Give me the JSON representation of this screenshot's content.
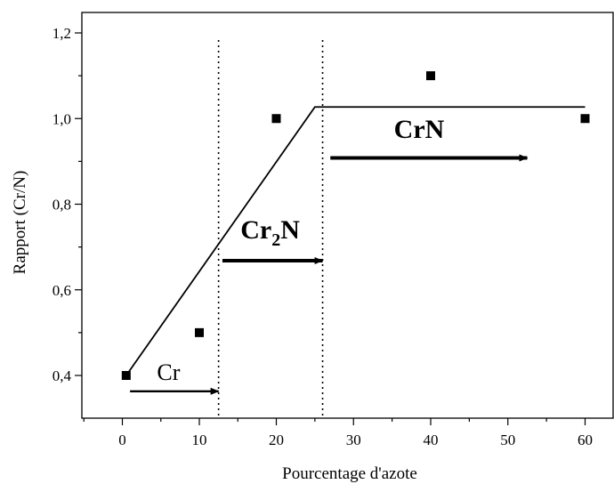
{
  "chart_data": {
    "type": "scatter",
    "xlabel": "Pourcentage d'azote",
    "ylabel": "Rapport (Cr/N)",
    "x_display_ticks": [
      "0",
      "10",
      "20",
      "30",
      "40",
      "50",
      "60"
    ],
    "y_display_ticks": [
      "0,4",
      "0,6",
      "0,8",
      "1,0",
      "1,2"
    ],
    "xlim_display": [
      -5,
      65
    ],
    "ylim": [
      0.3,
      1.45
    ],
    "grid": false,
    "points": [
      {
        "x": 0.5,
        "y": 0.4
      },
      {
        "x": 10,
        "y": 0.5
      },
      {
        "x": 20,
        "y": 1.0
      },
      {
        "x": 40,
        "y": 1.1
      },
      {
        "x": 60,
        "y": 1.0
      }
    ],
    "fit_line": [
      {
        "x": 0.5,
        "y": 0.4
      },
      {
        "x": 25,
        "y": 1.027
      },
      {
        "x": 60,
        "y": 1.027
      }
    ],
    "boundaries_x": [
      12.5,
      26
    ],
    "regions": [
      {
        "label": "Cr",
        "subscript": "",
        "suffix": "",
        "bold": false,
        "arrow_x": [
          1,
          12.5
        ],
        "arrow_y": 0.363,
        "label_x": 6,
        "label_y": 0.39
      },
      {
        "label": "Cr",
        "subscript": "2",
        "suffix": "N",
        "bold": true,
        "arrow_x": [
          13,
          26
        ],
        "arrow_y": 0.668,
        "label_x": 19.2,
        "label_y": 0.72
      },
      {
        "label": "CrN",
        "subscript": "",
        "suffix": "",
        "bold": true,
        "arrow_x": [
          27,
          52.5
        ],
        "arrow_y": 0.908,
        "label_x": 38.5,
        "label_y": 0.955
      }
    ]
  }
}
